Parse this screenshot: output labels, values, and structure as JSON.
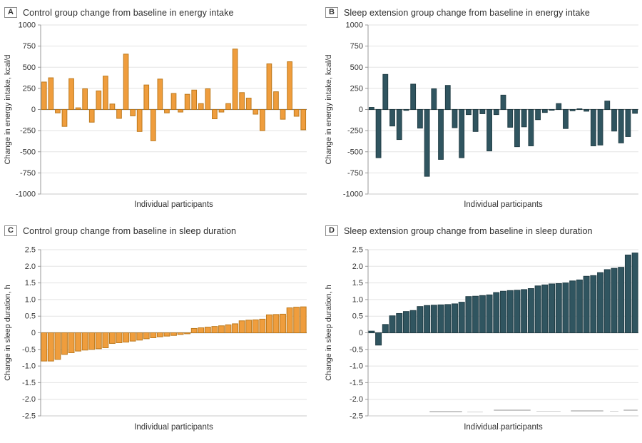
{
  "page": {
    "background": "#ffffff"
  },
  "watermark": {
    "dash_color": "#9a9a9a"
  },
  "chart_data": [
    {
      "panel": "A",
      "title": "Control group change from baseline in energy intake",
      "type": "bar",
      "ylabel": "Change in energy intake, kcal/d",
      "xlabel": "Individual participants",
      "ylim": [
        -1000,
        1000
      ],
      "ytick_step": 250,
      "grid": true,
      "legend": "none",
      "bar_color": "#EF9D3D",
      "bar_border": "#BD7A1E",
      "values": [
        325,
        375,
        -40,
        -200,
        365,
        20,
        245,
        -150,
        220,
        395,
        65,
        -105,
        655,
        -75,
        -260,
        290,
        -370,
        360,
        -40,
        190,
        -30,
        180,
        230,
        70,
        245,
        -110,
        -30,
        70,
        715,
        200,
        135,
        -55,
        -250,
        540,
        210,
        -115,
        565,
        -80,
        -240
      ]
    },
    {
      "panel": "B",
      "title": "Sleep extension group change from baseline in energy intake",
      "type": "bar",
      "ylabel": "Change in energy intake, kcal/d",
      "xlabel": "Individual participants",
      "ylim": [
        -1000,
        1000
      ],
      "ytick_step": 250,
      "grid": true,
      "legend": "none",
      "bar_color": "#305560",
      "bar_border": "#223E46",
      "values": [
        25,
        -570,
        415,
        -195,
        -355,
        -10,
        300,
        -220,
        -790,
        245,
        -590,
        285,
        -215,
        -570,
        -60,
        -260,
        -50,
        -490,
        -60,
        170,
        -210,
        -440,
        -205,
        -430,
        -120,
        -35,
        -5,
        70,
        -225,
        -15,
        5,
        -20,
        -430,
        -420,
        100,
        -255,
        -395,
        -320,
        -45
      ]
    },
    {
      "panel": "C",
      "title": "Control group change from baseline in sleep duration",
      "type": "bar",
      "ylabel": "Change in sleep duration, h",
      "xlabel": "Individual participants",
      "ylim": [
        -2.5,
        2.5
      ],
      "ytick_step": 0.5,
      "grid": true,
      "legend": "none",
      "bar_color": "#EF9D3D",
      "bar_border": "#BD7A1E",
      "values": [
        -0.85,
        -0.85,
        -0.8,
        -0.65,
        -0.6,
        -0.55,
        -0.52,
        -0.5,
        -0.48,
        -0.45,
        -0.32,
        -0.3,
        -0.28,
        -0.25,
        -0.22,
        -0.18,
        -0.15,
        -0.12,
        -0.1,
        -0.08,
        -0.05,
        -0.03,
        0.13,
        0.15,
        0.17,
        0.19,
        0.21,
        0.24,
        0.27,
        0.36,
        0.38,
        0.39,
        0.41,
        0.54,
        0.55,
        0.56,
        0.75,
        0.77,
        0.78
      ]
    },
    {
      "panel": "D",
      "title": "Sleep extension group change from baseline in sleep duration",
      "type": "bar",
      "ylabel": "Change in sleep duration, h",
      "xlabel": "Individual participants",
      "ylim": [
        -2.5,
        2.5
      ],
      "ytick_step": 0.5,
      "grid": true,
      "legend": "none",
      "bar_color": "#305560",
      "bar_border": "#223E46",
      "values": [
        0.05,
        -0.37,
        0.25,
        0.51,
        0.58,
        0.64,
        0.67,
        0.79,
        0.82,
        0.83,
        0.84,
        0.85,
        0.87,
        0.92,
        1.09,
        1.1,
        1.12,
        1.14,
        1.21,
        1.25,
        1.27,
        1.28,
        1.3,
        1.33,
        1.41,
        1.44,
        1.47,
        1.48,
        1.5,
        1.56,
        1.59,
        1.7,
        1.72,
        1.81,
        1.9,
        1.94,
        1.97,
        2.34,
        2.4
      ]
    }
  ]
}
